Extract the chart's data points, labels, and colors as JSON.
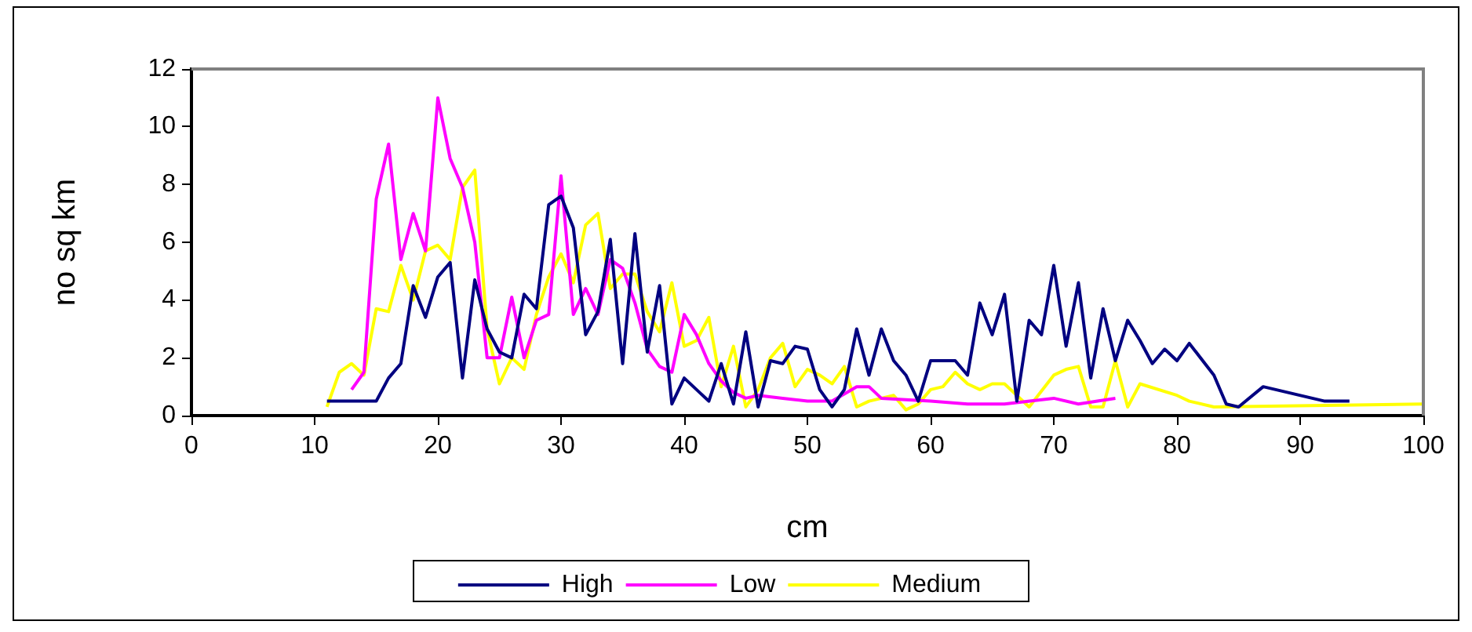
{
  "chart_data": {
    "type": "line",
    "xlabel": "cm",
    "ylabel": "no sq km",
    "xlim": [
      0,
      100
    ],
    "xticks": [
      0,
      10,
      20,
      30,
      40,
      50,
      60,
      70,
      80,
      90,
      100
    ],
    "ylim": [
      0,
      12
    ],
    "yticks": [
      0,
      2,
      4,
      6,
      8,
      10,
      12
    ],
    "grid": false,
    "legend": "bottom",
    "marker": "none",
    "line_style": "solid",
    "series": [
      {
        "name": "High",
        "color": "#000080",
        "x": [
          11,
          15,
          16,
          17,
          18,
          19,
          20,
          21,
          22,
          23,
          24,
          25,
          26,
          27,
          28,
          29,
          30,
          31,
          32,
          33,
          34,
          35,
          36,
          37,
          38,
          39,
          40,
          41,
          42,
          43,
          44,
          45,
          46,
          47,
          48,
          49,
          50,
          51,
          52,
          53,
          54,
          55,
          56,
          57,
          58,
          59,
          60,
          62,
          63,
          64,
          65,
          66,
          67,
          68,
          69,
          70,
          71,
          72,
          73,
          74,
          75,
          76,
          77,
          78,
          79,
          80,
          81,
          83,
          84,
          85,
          87,
          92,
          94
        ],
        "values": [
          0.5,
          0.5,
          1.3,
          1.8,
          4.5,
          3.4,
          4.8,
          5.3,
          1.3,
          4.7,
          3.0,
          2.2,
          2.0,
          4.2,
          3.7,
          7.3,
          7.6,
          6.5,
          2.8,
          3.6,
          6.1,
          1.8,
          6.3,
          2.2,
          4.5,
          0.4,
          1.3,
          0.9,
          0.5,
          1.8,
          0.4,
          2.9,
          0.3,
          1.9,
          1.8,
          2.4,
          2.3,
          0.9,
          0.3,
          0.9,
          3.0,
          1.4,
          3.0,
          1.9,
          1.4,
          0.5,
          1.9,
          1.9,
          1.4,
          3.9,
          2.8,
          4.2,
          0.5,
          3.3,
          2.8,
          5.2,
          2.4,
          4.6,
          1.3,
          3.7,
          1.9,
          3.3,
          2.6,
          1.8,
          2.3,
          1.9,
          2.5,
          1.4,
          0.4,
          0.3,
          1.0,
          0.5,
          0.5
        ]
      },
      {
        "name": "Low",
        "color": "#ff00ff",
        "x": [
          13,
          14,
          15,
          16,
          17,
          18,
          19,
          20,
          21,
          22,
          23,
          24,
          25,
          26,
          27,
          28,
          29,
          30,
          31,
          32,
          33,
          34,
          35,
          36,
          37,
          38,
          39,
          40,
          41,
          42,
          43,
          44,
          45,
          46,
          48,
          50,
          52,
          54,
          55,
          56,
          60,
          63,
          66,
          70,
          72,
          75
        ],
        "values": [
          0.9,
          1.5,
          7.5,
          9.4,
          5.4,
          7.0,
          5.7,
          11.0,
          8.9,
          7.9,
          6.0,
          2.0,
          2.0,
          4.1,
          2.0,
          3.3,
          3.5,
          8.3,
          3.5,
          4.4,
          3.5,
          5.4,
          5.1,
          3.9,
          2.3,
          1.7,
          1.5,
          3.5,
          2.8,
          1.8,
          1.2,
          0.8,
          0.6,
          0.7,
          0.6,
          0.5,
          0.5,
          1.0,
          1.0,
          0.6,
          0.5,
          0.4,
          0.4,
          0.6,
          0.4,
          0.6
        ]
      },
      {
        "name": "Medium",
        "color": "#ffff00",
        "x": [
          11,
          12,
          13,
          14,
          15,
          16,
          17,
          18,
          19,
          20,
          21,
          22,
          23,
          24,
          25,
          26,
          27,
          28,
          29,
          30,
          31,
          32,
          33,
          34,
          35,
          36,
          37,
          38,
          39,
          40,
          41,
          42,
          43,
          44,
          45,
          46,
          47,
          48,
          49,
          50,
          51,
          52,
          53,
          54,
          55,
          57,
          58,
          59,
          60,
          61,
          62,
          63,
          64,
          65,
          66,
          67,
          68,
          70,
          71,
          72,
          73,
          74,
          75,
          76,
          77,
          80,
          81,
          83,
          100
        ],
        "values": [
          0.3,
          1.5,
          1.8,
          1.4,
          3.7,
          3.6,
          5.2,
          4.0,
          5.7,
          5.9,
          5.4,
          7.9,
          8.5,
          3.0,
          1.1,
          2.0,
          1.6,
          3.5,
          4.8,
          5.6,
          4.6,
          6.6,
          7.0,
          4.4,
          4.9,
          4.9,
          3.6,
          2.9,
          4.6,
          2.4,
          2.6,
          3.4,
          1.0,
          2.4,
          0.3,
          0.9,
          2.0,
          2.5,
          1.0,
          1.6,
          1.4,
          1.1,
          1.7,
          0.3,
          0.5,
          0.7,
          0.2,
          0.4,
          0.9,
          1.0,
          1.5,
          1.1,
          0.9,
          1.1,
          1.1,
          0.7,
          0.3,
          1.4,
          1.6,
          1.7,
          0.3,
          0.3,
          1.9,
          0.3,
          1.1,
          0.7,
          0.5,
          0.3,
          0.4
        ]
      }
    ]
  }
}
